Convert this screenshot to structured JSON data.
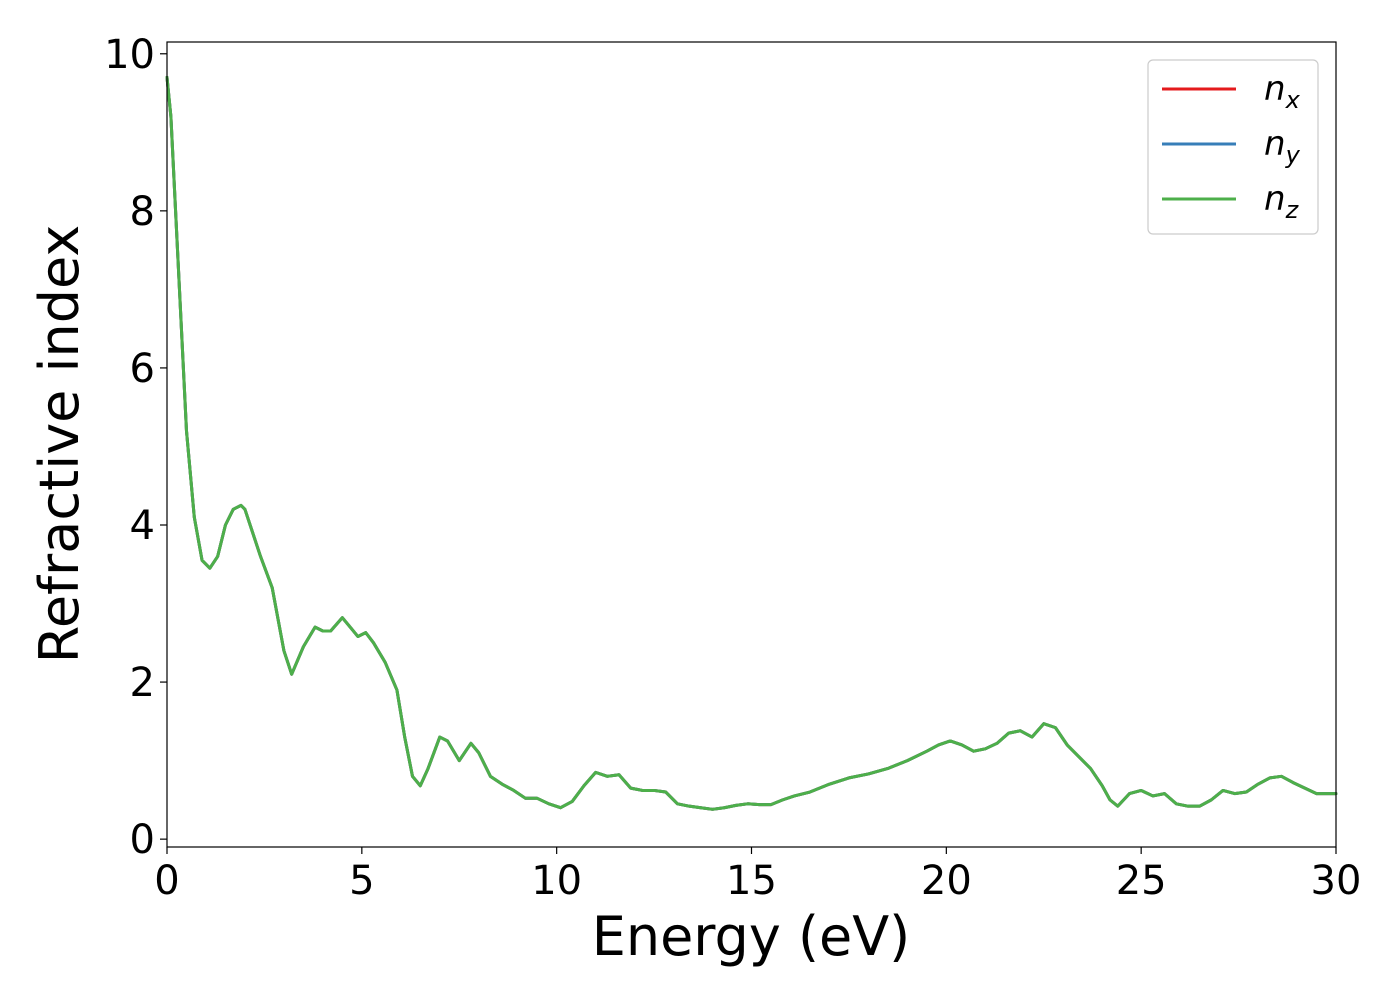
{
  "chart_data": {
    "type": "line",
    "title": "",
    "xlabel": "Energy (eV)",
    "ylabel": "Refractive index",
    "xlim": [
      0,
      30
    ],
    "ylim": [
      -0.1,
      10.15
    ],
    "xticks": [
      "0",
      "5",
      "10",
      "15",
      "20",
      "25",
      "30"
    ],
    "yticks": [
      "0",
      "2",
      "4",
      "6",
      "8",
      "10"
    ],
    "grid": false,
    "legend_position": "top-right",
    "colors": {
      "n_x": "#e41a1c",
      "n_y": "#377eb8",
      "n_z": "#4daf4a"
    },
    "x": [
      0.0,
      0.1,
      0.3,
      0.5,
      0.7,
      0.9,
      1.1,
      1.3,
      1.5,
      1.7,
      1.9,
      2.0,
      2.2,
      2.4,
      2.7,
      3.0,
      3.2,
      3.5,
      3.8,
      4.0,
      4.2,
      4.5,
      4.7,
      4.9,
      5.1,
      5.3,
      5.6,
      5.9,
      6.1,
      6.3,
      6.5,
      6.7,
      7.0,
      7.2,
      7.5,
      7.8,
      8.0,
      8.3,
      8.6,
      8.9,
      9.2,
      9.5,
      9.8,
      10.1,
      10.4,
      10.7,
      11.0,
      11.3,
      11.6,
      11.9,
      12.2,
      12.5,
      12.8,
      13.1,
      13.4,
      13.7,
      14.0,
      14.3,
      14.6,
      14.9,
      15.2,
      15.5,
      15.8,
      16.1,
      16.5,
      17.0,
      17.5,
      18.0,
      18.5,
      19.0,
      19.5,
      19.8,
      20.1,
      20.4,
      20.7,
      21.0,
      21.3,
      21.6,
      21.9,
      22.2,
      22.5,
      22.8,
      23.1,
      23.4,
      23.7,
      24.0,
      24.2,
      24.4,
      24.7,
      25.0,
      25.3,
      25.6,
      25.9,
      26.2,
      26.5,
      26.8,
      27.1,
      27.4,
      27.7,
      28.0,
      28.3,
      28.6,
      28.9,
      29.2,
      29.5,
      29.8,
      30.0
    ],
    "series": [
      {
        "name": "n_x",
        "values": [
          9.7,
          9.2,
          7.2,
          5.2,
          4.1,
          3.55,
          3.45,
          3.6,
          4.0,
          4.2,
          4.25,
          4.2,
          3.9,
          3.6,
          3.2,
          2.4,
          2.1,
          2.45,
          2.7,
          2.65,
          2.65,
          2.82,
          2.7,
          2.58,
          2.63,
          2.5,
          2.25,
          1.9,
          1.3,
          0.8,
          0.68,
          0.9,
          1.3,
          1.25,
          1.0,
          1.22,
          1.1,
          0.8,
          0.7,
          0.62,
          0.52,
          0.52,
          0.45,
          0.4,
          0.48,
          0.68,
          0.85,
          0.8,
          0.82,
          0.65,
          0.62,
          0.62,
          0.6,
          0.45,
          0.42,
          0.4,
          0.38,
          0.4,
          0.43,
          0.45,
          0.44,
          0.44,
          0.5,
          0.55,
          0.6,
          0.7,
          0.78,
          0.83,
          0.9,
          1.0,
          1.12,
          1.2,
          1.25,
          1.2,
          1.12,
          1.15,
          1.22,
          1.35,
          1.38,
          1.3,
          1.47,
          1.42,
          1.2,
          1.05,
          0.9,
          0.68,
          0.5,
          0.42,
          0.58,
          0.62,
          0.55,
          0.58,
          0.45,
          0.42,
          0.42,
          0.5,
          0.62,
          0.58,
          0.6,
          0.7,
          0.78,
          0.8,
          0.72,
          0.65,
          0.58,
          0.58,
          0.58
        ]
      },
      {
        "name": "n_y",
        "values": [
          9.7,
          9.2,
          7.2,
          5.2,
          4.1,
          3.55,
          3.45,
          3.6,
          4.0,
          4.2,
          4.25,
          4.2,
          3.9,
          3.6,
          3.2,
          2.4,
          2.1,
          2.45,
          2.7,
          2.65,
          2.65,
          2.82,
          2.7,
          2.58,
          2.63,
          2.5,
          2.25,
          1.9,
          1.3,
          0.8,
          0.68,
          0.9,
          1.3,
          1.25,
          1.0,
          1.22,
          1.1,
          0.8,
          0.7,
          0.62,
          0.52,
          0.52,
          0.45,
          0.4,
          0.48,
          0.68,
          0.85,
          0.8,
          0.82,
          0.65,
          0.62,
          0.62,
          0.6,
          0.45,
          0.42,
          0.4,
          0.38,
          0.4,
          0.43,
          0.45,
          0.44,
          0.44,
          0.5,
          0.55,
          0.6,
          0.7,
          0.78,
          0.83,
          0.9,
          1.0,
          1.12,
          1.2,
          1.25,
          1.2,
          1.12,
          1.15,
          1.22,
          1.35,
          1.38,
          1.3,
          1.47,
          1.42,
          1.2,
          1.05,
          0.9,
          0.68,
          0.5,
          0.42,
          0.58,
          0.62,
          0.55,
          0.58,
          0.45,
          0.42,
          0.42,
          0.5,
          0.62,
          0.58,
          0.6,
          0.7,
          0.78,
          0.8,
          0.72,
          0.65,
          0.58,
          0.58,
          0.58
        ]
      },
      {
        "name": "n_z",
        "values": [
          9.7,
          9.2,
          7.2,
          5.2,
          4.1,
          3.55,
          3.45,
          3.6,
          4.0,
          4.2,
          4.25,
          4.2,
          3.9,
          3.6,
          3.2,
          2.4,
          2.1,
          2.45,
          2.7,
          2.65,
          2.65,
          2.82,
          2.7,
          2.58,
          2.63,
          2.5,
          2.25,
          1.9,
          1.3,
          0.8,
          0.68,
          0.9,
          1.3,
          1.25,
          1.0,
          1.22,
          1.1,
          0.8,
          0.7,
          0.62,
          0.52,
          0.52,
          0.45,
          0.4,
          0.48,
          0.68,
          0.85,
          0.8,
          0.82,
          0.65,
          0.62,
          0.62,
          0.6,
          0.45,
          0.42,
          0.4,
          0.38,
          0.4,
          0.43,
          0.45,
          0.44,
          0.44,
          0.5,
          0.55,
          0.6,
          0.7,
          0.78,
          0.83,
          0.9,
          1.0,
          1.12,
          1.2,
          1.25,
          1.2,
          1.12,
          1.15,
          1.22,
          1.35,
          1.38,
          1.3,
          1.47,
          1.42,
          1.2,
          1.05,
          0.9,
          0.68,
          0.5,
          0.42,
          0.58,
          0.62,
          0.55,
          0.58,
          0.45,
          0.42,
          0.42,
          0.5,
          0.62,
          0.58,
          0.6,
          0.7,
          0.78,
          0.8,
          0.72,
          0.65,
          0.58,
          0.58,
          0.58
        ]
      }
    ],
    "legend": [
      {
        "base": "n",
        "sub": "x"
      },
      {
        "base": "n",
        "sub": "y"
      },
      {
        "base": "n",
        "sub": "z"
      }
    ]
  }
}
